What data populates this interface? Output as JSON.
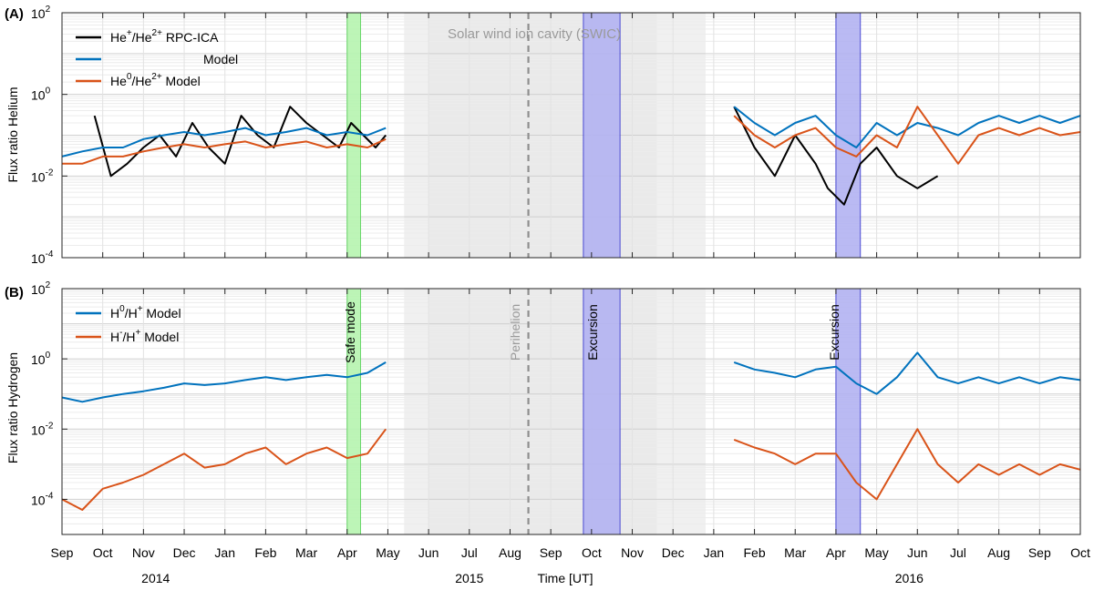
{
  "figure": {
    "xlabel": "Time [UT]",
    "months": [
      "Sep",
      "Oct",
      "Nov",
      "Dec",
      "Jan",
      "Feb",
      "Mar",
      "Apr",
      "May",
      "Jun",
      "Jul",
      "Aug",
      "Sep",
      "Oct",
      "Nov",
      "Dec",
      "Jan",
      "Feb",
      "Mar",
      "Apr",
      "May",
      "Jun",
      "Jul",
      "Aug",
      "Sep",
      "Oct"
    ],
    "years": [
      {
        "label": "2014",
        "month_pos": 2.3
      },
      {
        "label": "2015",
        "month_pos": 10.0
      },
      {
        "label": "2016",
        "month_pos": 20.8
      }
    ],
    "x_range_months": [
      0,
      25
    ],
    "shaded_regions": [
      {
        "name": "Safe mode",
        "start": 7.0,
        "end": 7.33,
        "color": "#b6f5b0",
        "edge": "#5bd35b"
      },
      {
        "name": "Excursion",
        "start": 12.8,
        "end": 13.7,
        "color": "#b3b3f2",
        "edge": "#3a3ad0"
      },
      {
        "name": "Excursion",
        "start": 19.0,
        "end": 19.6,
        "color": "#b3b3f2",
        "edge": "#3a3ad0"
      }
    ],
    "swic": {
      "label": "Solar wind ion cavity (SWIC)",
      "start": 8.4,
      "end": 15.8,
      "color": "#e3e3e3"
    },
    "perihelion": {
      "label": "Perihelion",
      "at": 11.45
    },
    "colors": {
      "black": "#000000",
      "blue": "#0072bd",
      "orange": "#d95319"
    }
  },
  "chart_data": [
    {
      "type": "line",
      "panel_label": "(A)",
      "ylabel": "Flux ratio Helium",
      "yscale": "log",
      "ylim": [
        0.0001,
        100
      ],
      "ytick_labels": [
        "10^-4",
        "10^-2",
        "10^0",
        "10^2"
      ],
      "legend_location": "top-left",
      "annotation": "Solar wind ion cavity (SWIC)",
      "series": [
        {
          "name": "He+/He2+ RPC-ICA",
          "legend": {
            "b1": "He",
            "s1": "+",
            "m": "/He",
            "s2": "2+",
            "t": " RPC-ICA"
          },
          "color": "#000000",
          "x": [
            0.8,
            1.2,
            1.6,
            2.0,
            2.4,
            2.8,
            3.2,
            3.6,
            4.0,
            4.4,
            4.8,
            5.2,
            5.6,
            6.0,
            6.4,
            6.8,
            7.1,
            7.4,
            7.7,
            7.95,
            16.5,
            17.0,
            17.5,
            18.0,
            18.5,
            18.8,
            19.2,
            19.6,
            20.0,
            20.5,
            21.0,
            21.5
          ],
          "y": [
            0.3,
            0.01,
            0.02,
            0.05,
            0.1,
            0.03,
            0.2,
            0.05,
            0.02,
            0.3,
            0.1,
            0.05,
            0.5,
            0.2,
            0.1,
            0.05,
            0.2,
            0.1,
            0.05,
            0.1,
            0.5,
            0.05,
            0.01,
            0.1,
            0.02,
            0.005,
            0.002,
            0.02,
            0.05,
            0.01,
            0.005,
            0.01
          ]
        },
        {
          "name": "Model",
          "legend": {
            "b1": "Model",
            "s1": "",
            "m": "",
            "s2": "",
            "t": ""
          },
          "color": "#0072bd",
          "x": [
            0.0,
            0.5,
            1.0,
            1.5,
            2.0,
            2.5,
            3.0,
            3.5,
            4.0,
            4.5,
            5.0,
            5.5,
            6.0,
            6.5,
            7.0,
            7.5,
            7.95,
            16.5,
            17.0,
            17.5,
            18.0,
            18.5,
            19.0,
            19.5,
            20.0,
            20.5,
            21.0,
            21.5,
            22.0,
            22.5,
            23.0,
            23.5,
            24.0,
            24.5,
            25.0
          ],
          "y": [
            0.03,
            0.04,
            0.05,
            0.05,
            0.08,
            0.1,
            0.12,
            0.1,
            0.12,
            0.15,
            0.1,
            0.12,
            0.15,
            0.1,
            0.12,
            0.1,
            0.15,
            0.5,
            0.2,
            0.1,
            0.2,
            0.3,
            0.1,
            0.05,
            0.2,
            0.1,
            0.2,
            0.15,
            0.1,
            0.2,
            0.3,
            0.2,
            0.3,
            0.2,
            0.3
          ]
        },
        {
          "name": "He0/He2+ Model",
          "legend": {
            "b1": "He",
            "s1": "0",
            "m": "/He",
            "s2": "2+",
            "t": " Model"
          },
          "color": "#d95319",
          "x": [
            0.0,
            0.5,
            1.0,
            1.5,
            2.0,
            2.5,
            3.0,
            3.5,
            4.0,
            4.5,
            5.0,
            5.5,
            6.0,
            6.5,
            7.0,
            7.5,
            7.95,
            16.5,
            17.0,
            17.5,
            18.0,
            18.5,
            19.0,
            19.5,
            20.0,
            20.5,
            21.0,
            21.5,
            22.0,
            22.5,
            23.0,
            23.5,
            24.0,
            24.5,
            25.0
          ],
          "y": [
            0.02,
            0.02,
            0.03,
            0.03,
            0.04,
            0.05,
            0.06,
            0.05,
            0.06,
            0.07,
            0.05,
            0.06,
            0.07,
            0.05,
            0.06,
            0.05,
            0.08,
            0.3,
            0.1,
            0.05,
            0.1,
            0.15,
            0.05,
            0.03,
            0.1,
            0.05,
            0.5,
            0.1,
            0.02,
            0.1,
            0.15,
            0.1,
            0.15,
            0.1,
            0.12
          ]
        }
      ]
    },
    {
      "type": "line",
      "panel_label": "(B)",
      "ylabel": "Flux ratio Hydrogen",
      "yscale": "log",
      "ylim": [
        1e-05,
        100
      ],
      "ytick_labels": [
        "10^-4",
        "10^-2",
        "10^0",
        "10^2"
      ],
      "legend_location": "top-left",
      "series": [
        {
          "name": "H0/H+ Model",
          "legend": {
            "b1": "H",
            "s1": "0",
            "m": "/H",
            "s2": "+",
            "t": " Model"
          },
          "color": "#0072bd",
          "x": [
            0.0,
            0.5,
            1.0,
            1.5,
            2.0,
            2.5,
            3.0,
            3.5,
            4.0,
            4.5,
            5.0,
            5.5,
            6.0,
            6.5,
            7.0,
            7.5,
            7.95,
            16.5,
            17.0,
            17.5,
            18.0,
            18.5,
            19.0,
            19.5,
            20.0,
            20.5,
            21.0,
            21.5,
            22.0,
            22.5,
            23.0,
            23.5,
            24.0,
            24.5,
            25.0
          ],
          "y": [
            0.08,
            0.06,
            0.08,
            0.1,
            0.12,
            0.15,
            0.2,
            0.18,
            0.2,
            0.25,
            0.3,
            0.25,
            0.3,
            0.35,
            0.3,
            0.4,
            0.8,
            0.8,
            0.5,
            0.4,
            0.3,
            0.5,
            0.6,
            0.2,
            0.1,
            0.3,
            1.5,
            0.3,
            0.2,
            0.3,
            0.2,
            0.3,
            0.2,
            0.3,
            0.25
          ]
        },
        {
          "name": "H-/H+ Model",
          "legend": {
            "b1": "H",
            "s1": "-",
            "m": "/H",
            "s2": "+",
            "t": " Model"
          },
          "color": "#d95319",
          "x": [
            0.0,
            0.5,
            1.0,
            1.5,
            2.0,
            2.5,
            3.0,
            3.5,
            4.0,
            4.5,
            5.0,
            5.5,
            6.0,
            6.5,
            7.0,
            7.5,
            7.95,
            16.5,
            17.0,
            17.5,
            18.0,
            18.5,
            19.0,
            19.5,
            20.0,
            20.5,
            21.0,
            21.5,
            22.0,
            22.5,
            23.0,
            23.5,
            24.0,
            24.5,
            25.0
          ],
          "y": [
            0.0001,
            5e-05,
            0.0002,
            0.0003,
            0.0005,
            0.001,
            0.002,
            0.0008,
            0.001,
            0.002,
            0.003,
            0.001,
            0.002,
            0.003,
            0.0015,
            0.002,
            0.01,
            0.005,
            0.003,
            0.002,
            0.001,
            0.002,
            0.002,
            0.0003,
            0.0001,
            0.001,
            0.01,
            0.001,
            0.0003,
            0.001,
            0.0005,
            0.001,
            0.0005,
            0.001,
            0.0007
          ]
        }
      ]
    }
  ]
}
